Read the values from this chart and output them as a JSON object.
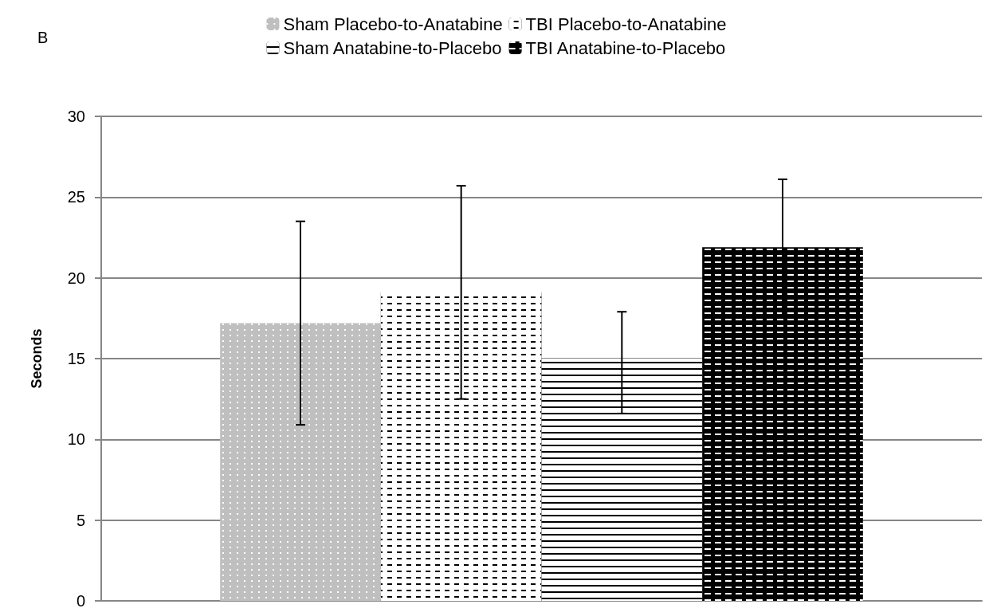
{
  "chart_data": {
    "type": "bar",
    "ylabel": "Seconds",
    "annotations": [
      "B"
    ],
    "categories": [
      null
    ],
    "series": [
      {
        "name": "Sham Placebo-to-Anatabine",
        "color": "#bfbfbf",
        "values": [
          17.2
        ],
        "errors": [
          6.3
        ]
      },
      {
        "name": "TBI Placebo-to-Anatabine",
        "color": "#000000",
        "values": [
          19.1
        ],
        "errors": [
          6.6
        ]
      },
      {
        "name": "Sham Anatabine-to-Placebo",
        "color": "#000000",
        "values": [
          15.0
        ],
        "errors": [
          [
            11.6,
            17.9
          ]
        ]
      },
      {
        "name": "TBI Anatabine-to-Placebo",
        "color": "#000000",
        "values": [
          21.9
        ],
        "errors": [
          4.2
        ]
      }
    ],
    "ylim": [
      0,
      30
    ],
    "yticks": [
      0,
      5,
      10,
      15,
      20,
      25,
      30
    ],
    "grid": "y",
    "legend": "top"
  }
}
